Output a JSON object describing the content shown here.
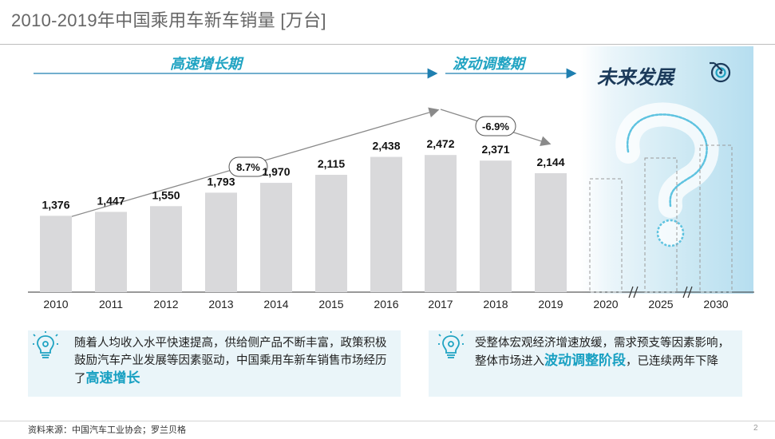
{
  "title": "2010-2019年中国乘用车新车销量 [万台]",
  "phases": {
    "high_growth": "高速增长期",
    "fluctuation": "波动调整期",
    "future": "未来发展"
  },
  "growth_labels": {
    "cagr": "8.7%",
    "decline": "-6.9%"
  },
  "colors": {
    "bar": "#d9d9db",
    "accent": "#1fa3c2",
    "arrow": "#1f7fb0",
    "trend": "#8a8a8a",
    "future_text": "#1b3a5a"
  },
  "chart_data": {
    "type": "bar",
    "title": "2010-2019年中国乘用车新车销量 [万台]",
    "unit": "万台",
    "categories": [
      "2010",
      "2011",
      "2012",
      "2013",
      "2014",
      "2015",
      "2016",
      "2017",
      "2018",
      "2019",
      "2020",
      "2025",
      "2030"
    ],
    "values": [
      1376,
      1447,
      1550,
      1793,
      1970,
      2115,
      2438,
      2472,
      2371,
      2144,
      null,
      null,
      null
    ],
    "value_labels": [
      "1,376",
      "1,447",
      "1,550",
      "1,793",
      "1,970",
      "2,115",
      "2,438",
      "2,472",
      "2,371",
      "2,144",
      "",
      "",
      ""
    ],
    "projected_categories": [
      "2020",
      "2025",
      "2030"
    ],
    "annotations": [
      "8.7%",
      "-6.9%"
    ]
  },
  "notes": {
    "left_prefix": "随着人均收入水平快速提高，供给侧产品不断丰富，政策积极鼓励汽车产业发展等因素驱动，中国乘用车新车销售市场经历了",
    "left_highlight": "高速增长",
    "right_prefix": "受整体宏观经济增速放缓，需求预支等因素影响，整体市场进入",
    "right_highlight": "波动调整阶段",
    "right_suffix": "，已连续两年下降"
  },
  "icons": {
    "target": "target-icon",
    "question": "question-mark-icon",
    "bulb": "lightbulb-gear-icon"
  },
  "footer": {
    "source": "资料来源：中国汽车工业协会；罗兰贝格",
    "page": "2"
  }
}
